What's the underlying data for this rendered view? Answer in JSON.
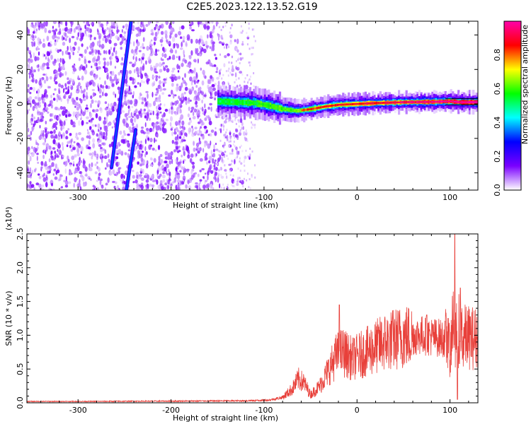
{
  "title": "C2E5.2023.122.13.52.G19",
  "chart_data": [
    {
      "type": "heatmap",
      "xlabel": "Height of straight line (km)",
      "ylabel": "Frequency (Hz)",
      "xlim": [
        -355,
        130
      ],
      "ylim": [
        -50,
        48
      ],
      "xticks": [
        -300,
        -200,
        -100,
        0,
        100
      ],
      "yticks": [
        -40,
        -20,
        0,
        20,
        40
      ],
      "colorbar": {
        "label": "Normalized spectral amplitude",
        "range": [
          0,
          1
        ],
        "ticks": [
          0.0,
          0.2,
          0.4,
          0.6,
          0.8
        ],
        "colors": [
          "#ffffff",
          "#7a00ff",
          "#0000ff",
          "#00ffff",
          "#00ff00",
          "#ffff00",
          "#ff0000",
          "#ff00aa"
        ]
      },
      "ridge": [
        {
          "x": -150,
          "y": 1.5
        },
        {
          "x": -130,
          "y": 1.0
        },
        {
          "x": -110,
          "y": 0.5
        },
        {
          "x": -95,
          "y": -1.0
        },
        {
          "x": -80,
          "y": -3.0
        },
        {
          "x": -65,
          "y": -4.0
        },
        {
          "x": -50,
          "y": -3.0
        },
        {
          "x": -35,
          "y": -1.5
        },
        {
          "x": -20,
          "y": -0.5
        },
        {
          "x": 0,
          "y": 0.0
        },
        {
          "x": 20,
          "y": 0.5
        },
        {
          "x": 50,
          "y": 1.0
        },
        {
          "x": 80,
          "y": 1.2
        },
        {
          "x": 100,
          "y": 1.5
        },
        {
          "x": 110,
          "y": 1.0
        },
        {
          "x": 130,
          "y": 1.0
        }
      ],
      "streaks": [
        {
          "x0": -264,
          "y0": -37,
          "x1": -243,
          "y1": 48
        },
        {
          "x0": -248,
          "y0": -50,
          "x1": -238,
          "y1": -15
        }
      ]
    },
    {
      "type": "line",
      "xlabel": "Height of straight line (km)",
      "ylabel": "SNR (10 * v/v)",
      "y_multiplier": "(x10⁴)",
      "xlim": [
        -355,
        130
      ],
      "ylim": [
        0,
        2.5
      ],
      "xticks": [
        -300,
        -200,
        -100,
        0,
        100
      ],
      "yticks": [
        0.0,
        0.5,
        1.0,
        1.5,
        2.0,
        2.5
      ],
      "envelope": [
        {
          "x": -355,
          "y": 0.02
        },
        {
          "x": -300,
          "y": 0.02
        },
        {
          "x": -200,
          "y": 0.025
        },
        {
          "x": -120,
          "y": 0.03
        },
        {
          "x": -95,
          "y": 0.04
        },
        {
          "x": -80,
          "y": 0.08
        },
        {
          "x": -70,
          "y": 0.2
        },
        {
          "x": -63,
          "y": 0.35
        },
        {
          "x": -57,
          "y": 0.3
        },
        {
          "x": -50,
          "y": 0.12
        },
        {
          "x": -40,
          "y": 0.25
        },
        {
          "x": -30,
          "y": 0.5
        },
        {
          "x": -22,
          "y": 0.7
        },
        {
          "x": -15,
          "y": 0.75
        },
        {
          "x": -5,
          "y": 0.65
        },
        {
          "x": 10,
          "y": 0.75
        },
        {
          "x": 30,
          "y": 0.9
        },
        {
          "x": 50,
          "y": 0.98
        },
        {
          "x": 70,
          "y": 1.0
        },
        {
          "x": 80,
          "y": 0.98
        },
        {
          "x": 95,
          "y": 0.95
        },
        {
          "x": 100,
          "y": 0.75
        },
        {
          "x": 103,
          "y": 1.3
        },
        {
          "x": 106,
          "y": 1.0
        },
        {
          "x": 110,
          "y": 1.0
        },
        {
          "x": 115,
          "y": 0.98
        },
        {
          "x": 130,
          "y": 0.95
        }
      ],
      "spikes": [
        {
          "x": -19,
          "y": 1.45
        },
        {
          "x": 75,
          "y": 1.3
        },
        {
          "x": 98,
          "y": 1.25
        },
        {
          "x": 105,
          "y": 2.5
        },
        {
          "x": 111,
          "y": 1.7
        },
        {
          "x": 108,
          "y": 0.05
        }
      ]
    }
  ]
}
